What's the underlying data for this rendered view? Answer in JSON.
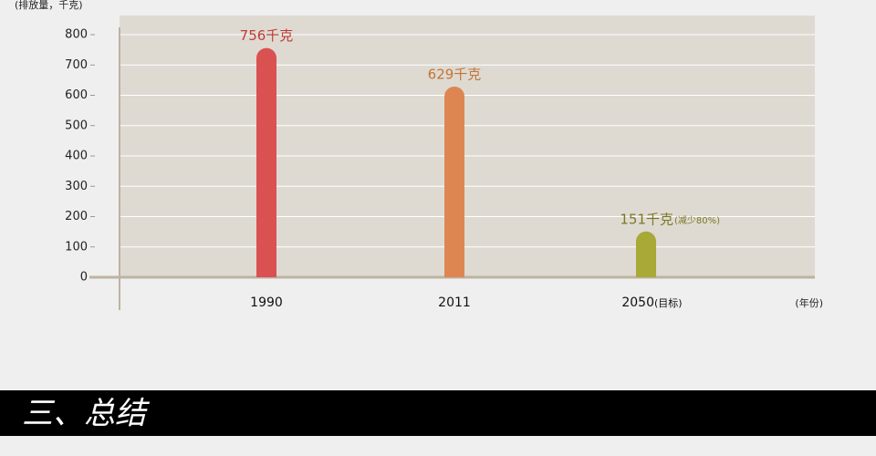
{
  "chart_data": {
    "type": "bar",
    "y_axis_label": "(排放量，千克)",
    "x_axis_label": "(年份)",
    "categories": [
      "1990",
      "2011",
      "2050"
    ],
    "values": [
      756,
      629,
      151
    ],
    "value_labels": [
      "756千克",
      "629千克",
      "151千克"
    ],
    "colors": [
      "#da5152",
      "#de8651",
      "#a8a936"
    ],
    "label_colors": [
      "#c23a36",
      "#c47436",
      "#7b7826"
    ],
    "value_notes": [
      null,
      null,
      "(减少80%)"
    ],
    "category_notes": [
      null,
      null,
      "(目标)"
    ],
    "ylim": [
      0,
      800
    ],
    "yticks": [
      0,
      100,
      200,
      300,
      400,
      500,
      600,
      700,
      800
    ],
    "grid": true
  },
  "section_title": "三、总结"
}
